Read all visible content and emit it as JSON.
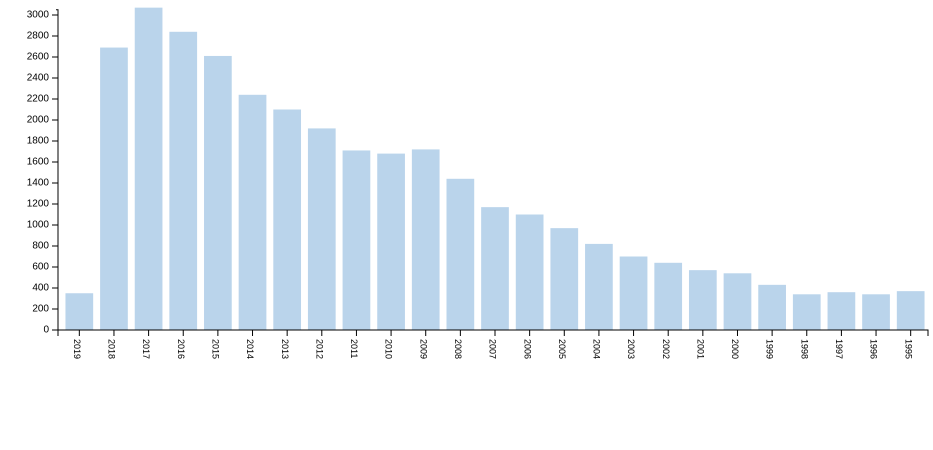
{
  "chart_data": {
    "type": "bar",
    "categories": [
      "2019",
      "2018",
      "2017",
      "2016",
      "2015",
      "2014",
      "2013",
      "2012",
      "2011",
      "2010",
      "2009",
      "2008",
      "2007",
      "2006",
      "2005",
      "2004",
      "2003",
      "2002",
      "2001",
      "2000",
      "1999",
      "1998",
      "1997",
      "1996",
      "1995"
    ],
    "values": [
      350,
      2690,
      3070,
      2840,
      2610,
      2240,
      2100,
      1920,
      1710,
      1680,
      1720,
      1440,
      1170,
      1100,
      970,
      820,
      700,
      640,
      570,
      540,
      430,
      340,
      360,
      340,
      370
    ],
    "color": "#bad4eb",
    "ylim": [
      0,
      3050
    ],
    "yticks": [
      0,
      200,
      400,
      600,
      800,
      1000,
      1200,
      1400,
      1600,
      1800,
      2000,
      2200,
      2400,
      2600,
      2800,
      3000
    ],
    "grid": false
  }
}
